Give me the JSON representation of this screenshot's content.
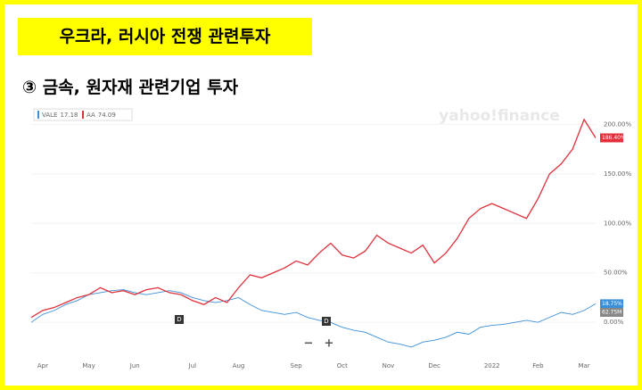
{
  "header": {
    "title": "우크라, 러시아 전쟁 관련투자",
    "subtitle": "③ 금속, 원자재 관련기업 투자"
  },
  "chart_data": {
    "type": "line",
    "watermark": "yahoo!finance",
    "categories": [
      null,
      "Apr",
      null,
      null,
      null,
      "May",
      null,
      null,
      null,
      "Jun",
      null,
      null,
      null,
      null,
      "Jul",
      null,
      null,
      null,
      "Aug",
      null,
      null,
      null,
      null,
      "Sep",
      null,
      null,
      null,
      "Oct",
      null,
      null,
      null,
      "Nov",
      null,
      null,
      null,
      "Dec",
      null,
      null,
      null,
      null,
      "2022",
      null,
      null,
      null,
      "Feb",
      null,
      null,
      null,
      "Mar",
      null
    ],
    "series": [
      {
        "name": "VALE",
        "price": 17.18,
        "color": "#3b8fd6",
        "end_label": "18.75%",
        "values": [
          0,
          8,
          12,
          18,
          22,
          28,
          30,
          32,
          33,
          30,
          28,
          30,
          32,
          30,
          25,
          22,
          20,
          22,
          25,
          18,
          12,
          10,
          8,
          10,
          5,
          2,
          0,
          -5,
          -8,
          -10,
          -15,
          -20,
          -22,
          -25,
          -20,
          -18,
          -15,
          -10,
          -12,
          -5,
          -3,
          -2,
          0,
          2,
          0,
          5,
          10,
          8,
          12,
          18.75
        ]
      },
      {
        "name": "AA",
        "price": 74.09,
        "color": "#e0313c",
        "end_label": "186.40%",
        "values": [
          5,
          12,
          15,
          20,
          25,
          28,
          35,
          30,
          32,
          28,
          33,
          35,
          30,
          28,
          22,
          18,
          25,
          20,
          35,
          48,
          45,
          50,
          55,
          62,
          58,
          70,
          80,
          68,
          65,
          72,
          88,
          80,
          75,
          70,
          78,
          60,
          70,
          85,
          105,
          115,
          120,
          115,
          110,
          105,
          125,
          150,
          160,
          175,
          205,
          186.4
        ]
      }
    ],
    "volume_label": "62.75M",
    "events": [
      "D",
      "D"
    ],
    "zoom": [
      "−",
      "+"
    ],
    "ylim": [
      -35,
      222
    ],
    "yticks": [
      {
        "value": 0,
        "label": "0.00%"
      },
      {
        "value": 50,
        "label": "50.00%"
      },
      {
        "value": 100,
        "label": "100.00%"
      },
      {
        "value": 150,
        "label": "150.00%"
      },
      {
        "value": 200,
        "label": "200.00%"
      }
    ]
  }
}
